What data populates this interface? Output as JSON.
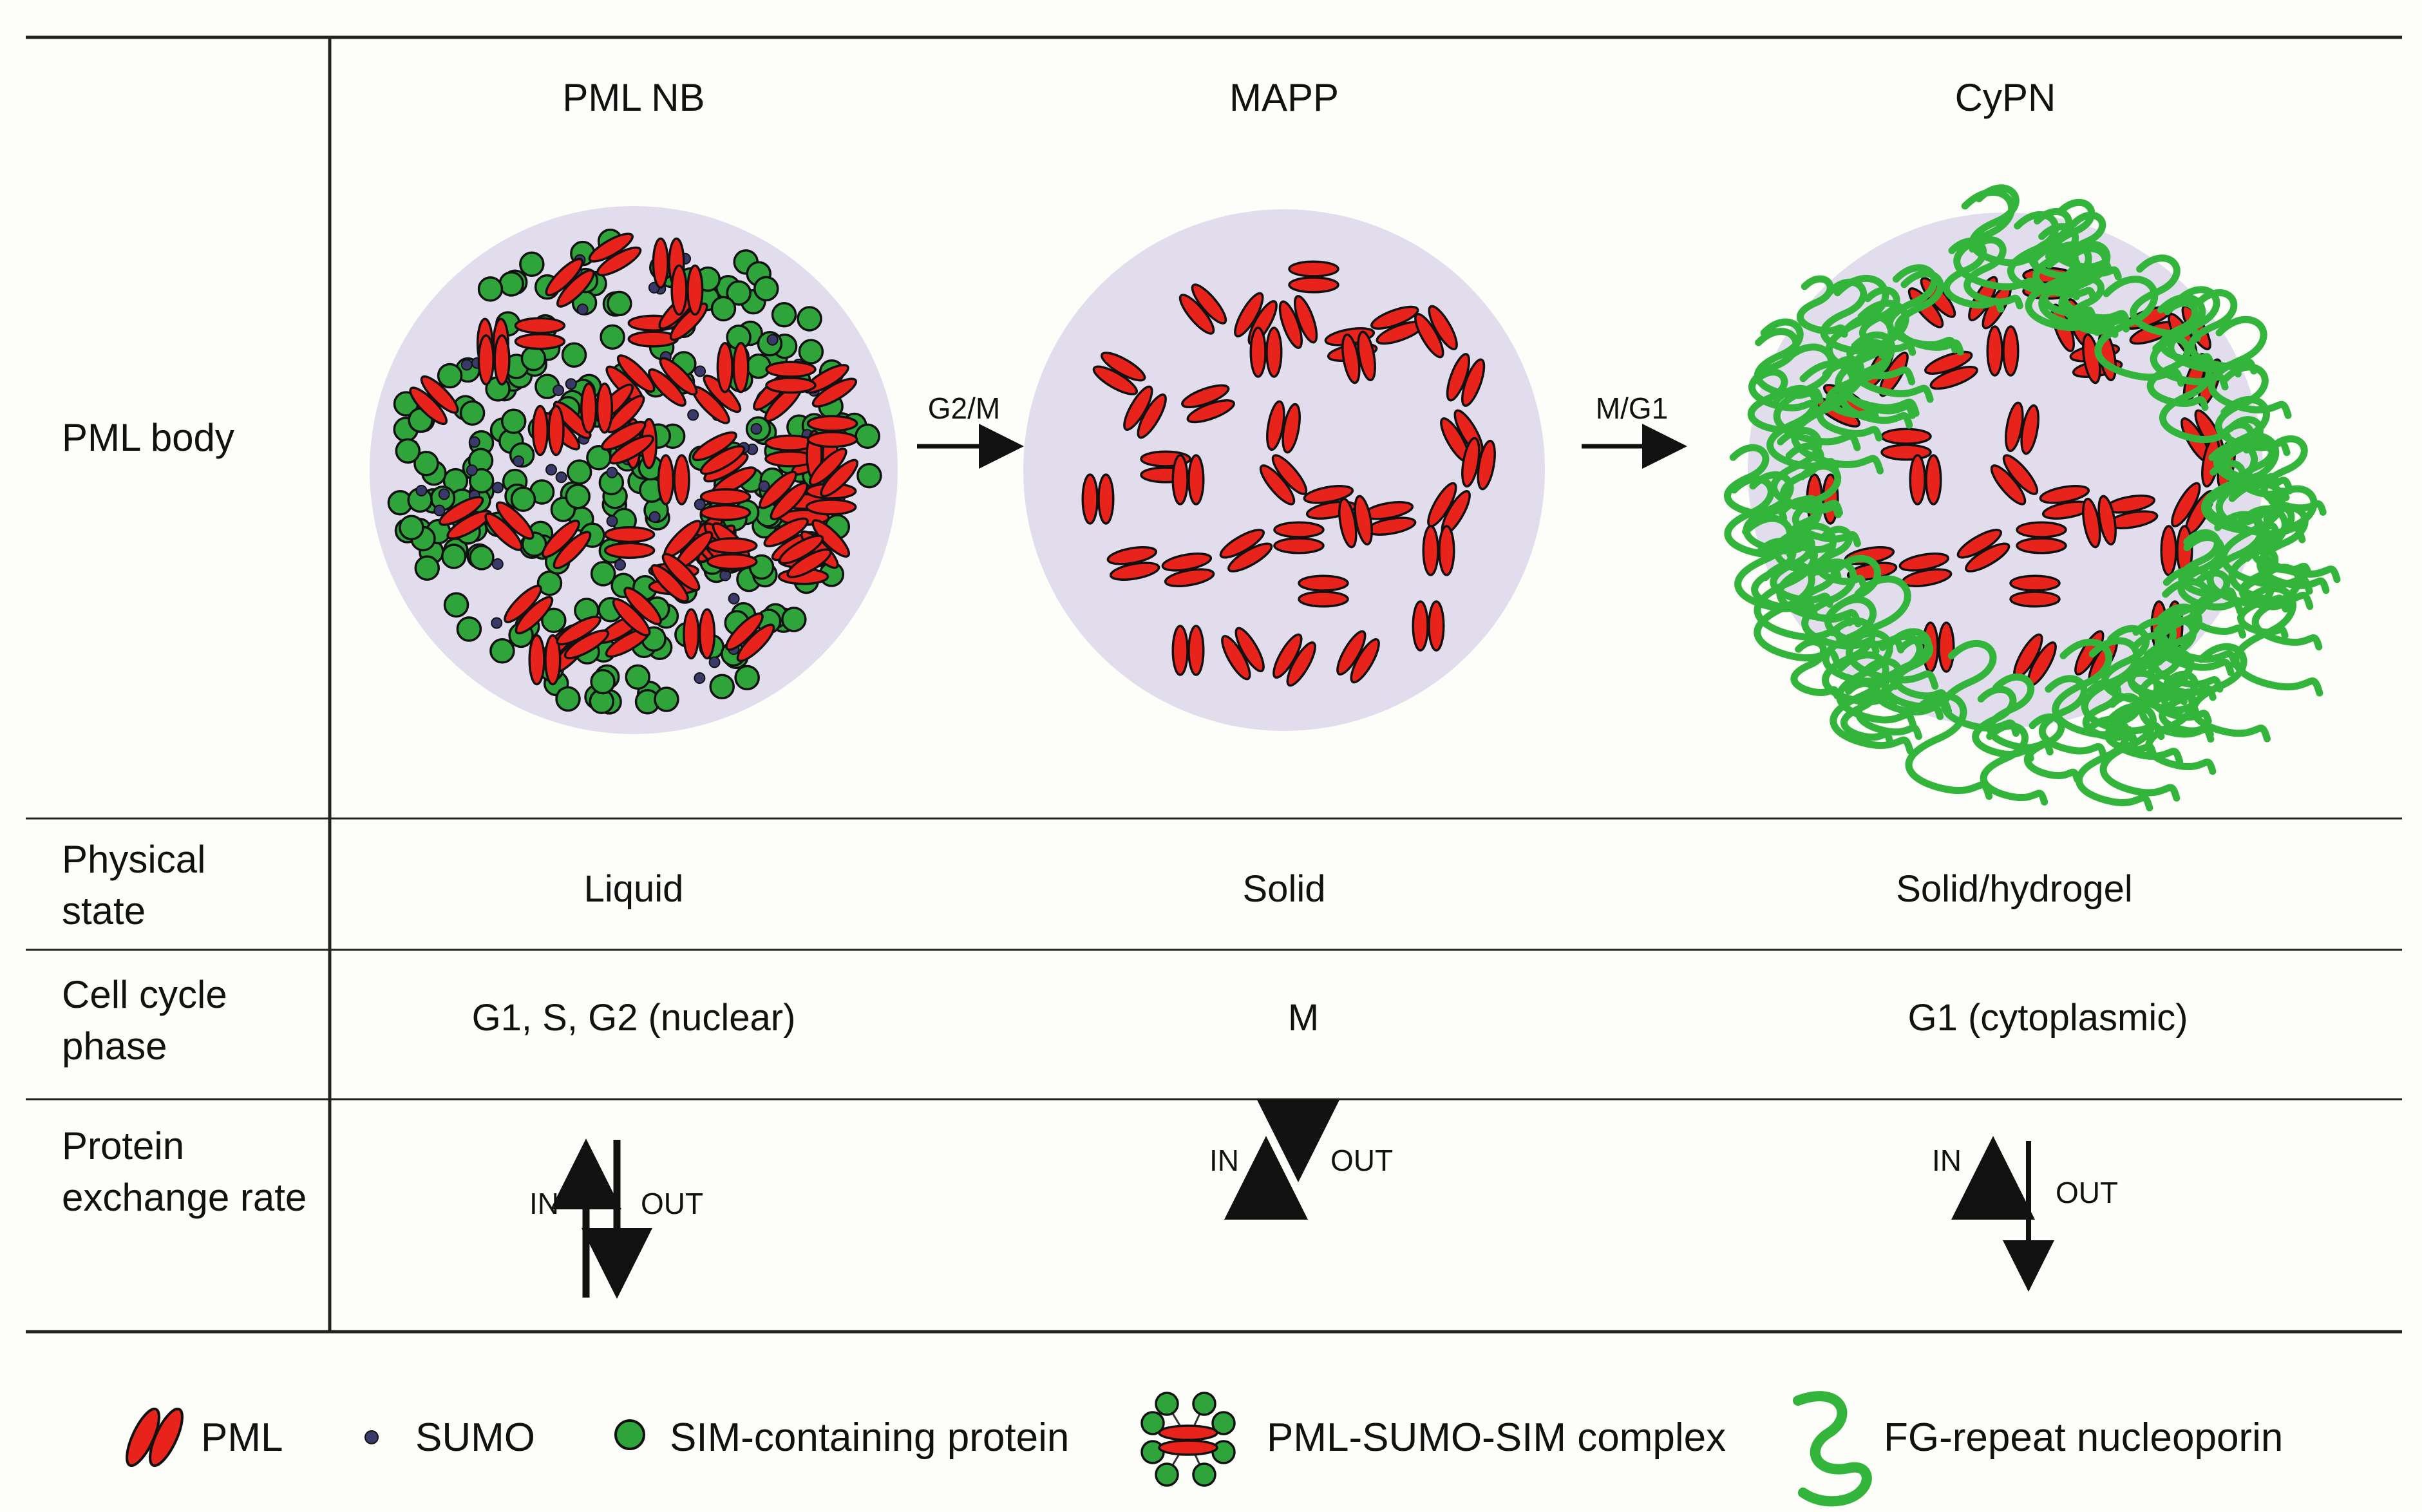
{
  "columns": [
    {
      "key": "pml_nb",
      "title": "PML NB"
    },
    {
      "key": "mapp",
      "title": "MAPP"
    },
    {
      "key": "cypn",
      "title": "CyPN"
    }
  ],
  "transitions": [
    "G2/M",
    "M/G1"
  ],
  "rows": {
    "pml_body": {
      "label_lines": [
        "PML body"
      ]
    },
    "physical_state": {
      "label_lines": [
        "Physical",
        "state"
      ],
      "values": [
        "Liquid",
        "Solid",
        "Solid/hydrogel"
      ]
    },
    "cell_cycle": {
      "label_lines": [
        "Cell cycle",
        "phase"
      ],
      "values": [
        "G1, S, G2 (nuclear)",
        "M",
        "G1 (cytoplasmic)"
      ]
    },
    "exchange": {
      "label_lines": [
        "Protein",
        "exchange rate"
      ],
      "in_label": "IN",
      "out_label": "OUT"
    }
  },
  "legend": [
    {
      "icon": "pml-icon",
      "label": "PML"
    },
    {
      "icon": "sumo-icon",
      "label": "SUMO"
    },
    {
      "icon": "sim-protein-icon",
      "label": "SIM-containing protein"
    },
    {
      "icon": "pml-sumo-sim-complex-icon",
      "label": "PML-SUMO-SIM complex"
    },
    {
      "icon": "fg-nucleoporin-icon",
      "label": "FG-repeat nucleoporin"
    }
  ],
  "colors": {
    "pml": "#e8231b",
    "sim": "#2ea43a",
    "sumo": "#3a3a6a",
    "body_fill": "#e2ddec",
    "nucleoporin": "#33b53b",
    "ink": "#111111"
  }
}
